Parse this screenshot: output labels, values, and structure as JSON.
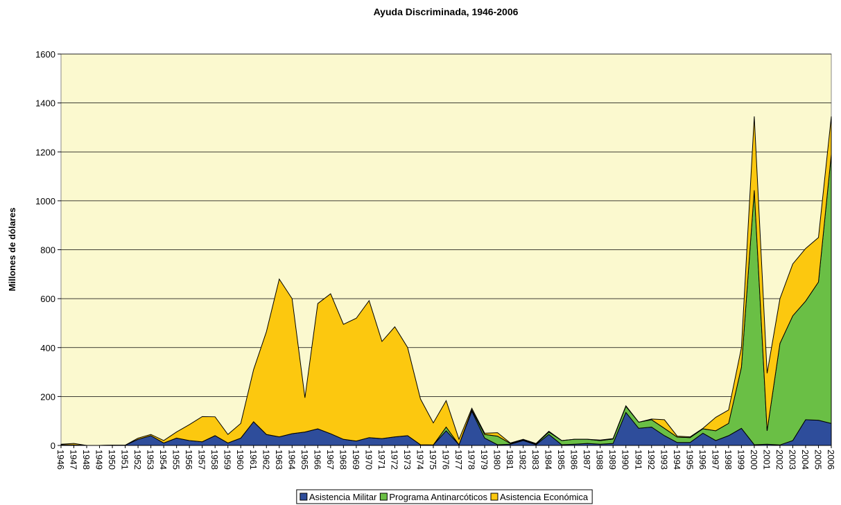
{
  "chart_data": {
    "type": "stacked_area",
    "title": "Ayuda Discriminada, 1946-2006",
    "y_label": "Millones de dólares",
    "categories": [
      "1946",
      "1947",
      "1948",
      "1949",
      "1950",
      "1951",
      "1952",
      "1953",
      "1954",
      "1955",
      "1956",
      "1957",
      "1958",
      "1959",
      "1960",
      "1961",
      "1962",
      "1963",
      "1964",
      "1965",
      "1966",
      "1967",
      "1968",
      "1969",
      "1970",
      "1971",
      "1972",
      "1973",
      "1974",
      "1975",
      "1976",
      "1977",
      "1978",
      "1979",
      "1980",
      "1981",
      "1982",
      "1983",
      "1984",
      "1985",
      "1986",
      "1987",
      "1988",
      "1989",
      "1990",
      "1991",
      "1992",
      "1993",
      "1994",
      "1995",
      "1996",
      "1997",
      "1998",
      "1999",
      "2000",
      "2001",
      "2002",
      "2003",
      "2004",
      "2005",
      "2006"
    ],
    "series": [
      {
        "name": "Asistencia Militar",
        "color": "#2e4d9b",
        "values": [
          3,
          2,
          0,
          0,
          1,
          1,
          25,
          40,
          10,
          30,
          20,
          15,
          40,
          10,
          30,
          97,
          45,
          35,
          48,
          55,
          68,
          48,
          25,
          18,
          32,
          28,
          35,
          40,
          3,
          2,
          60,
          3,
          140,
          30,
          3,
          5,
          20,
          3,
          45,
          3,
          5,
          8,
          5,
          8,
          135,
          70,
          75,
          40,
          12,
          12,
          50,
          20,
          40,
          70,
          3,
          5,
          2,
          20,
          105,
          103,
          90
        ]
      },
      {
        "name": "Programa Antinarcóticos",
        "color": "#6abf45",
        "values": [
          0,
          0,
          0,
          0,
          0,
          0,
          0,
          0,
          0,
          0,
          0,
          0,
          0,
          0,
          0,
          0,
          0,
          0,
          0,
          0,
          0,
          0,
          0,
          0,
          0,
          0,
          0,
          0,
          0,
          0,
          15,
          0,
          5,
          15,
          35,
          3,
          3,
          3,
          10,
          17,
          20,
          17,
          15,
          18,
          25,
          25,
          30,
          30,
          22,
          20,
          18,
          40,
          50,
          250,
          1040,
          55,
          415,
          510,
          485,
          565,
          1100
        ]
      },
      {
        "name": "Asistencia Económica",
        "color": "#fcc80f",
        "values": [
          2,
          6,
          0,
          0,
          0,
          0,
          5,
          5,
          10,
          25,
          65,
          103,
          77,
          35,
          60,
          213,
          420,
          645,
          552,
          140,
          512,
          572,
          470,
          502,
          560,
          397,
          450,
          360,
          187,
          90,
          108,
          22,
          7,
          5,
          14,
          2,
          2,
          2,
          3,
          0,
          0,
          0,
          2,
          2,
          2,
          0,
          3,
          35,
          4,
          3,
          2,
          55,
          55,
          80,
          302,
          235,
          183,
          212,
          215,
          182,
          155
        ]
      }
    ],
    "ylim": [
      0,
      1600
    ],
    "yticks": [
      0,
      200,
      400,
      600,
      800,
      1000,
      1200,
      1400,
      1600
    ],
    "grid": true,
    "legend": "bottom"
  }
}
